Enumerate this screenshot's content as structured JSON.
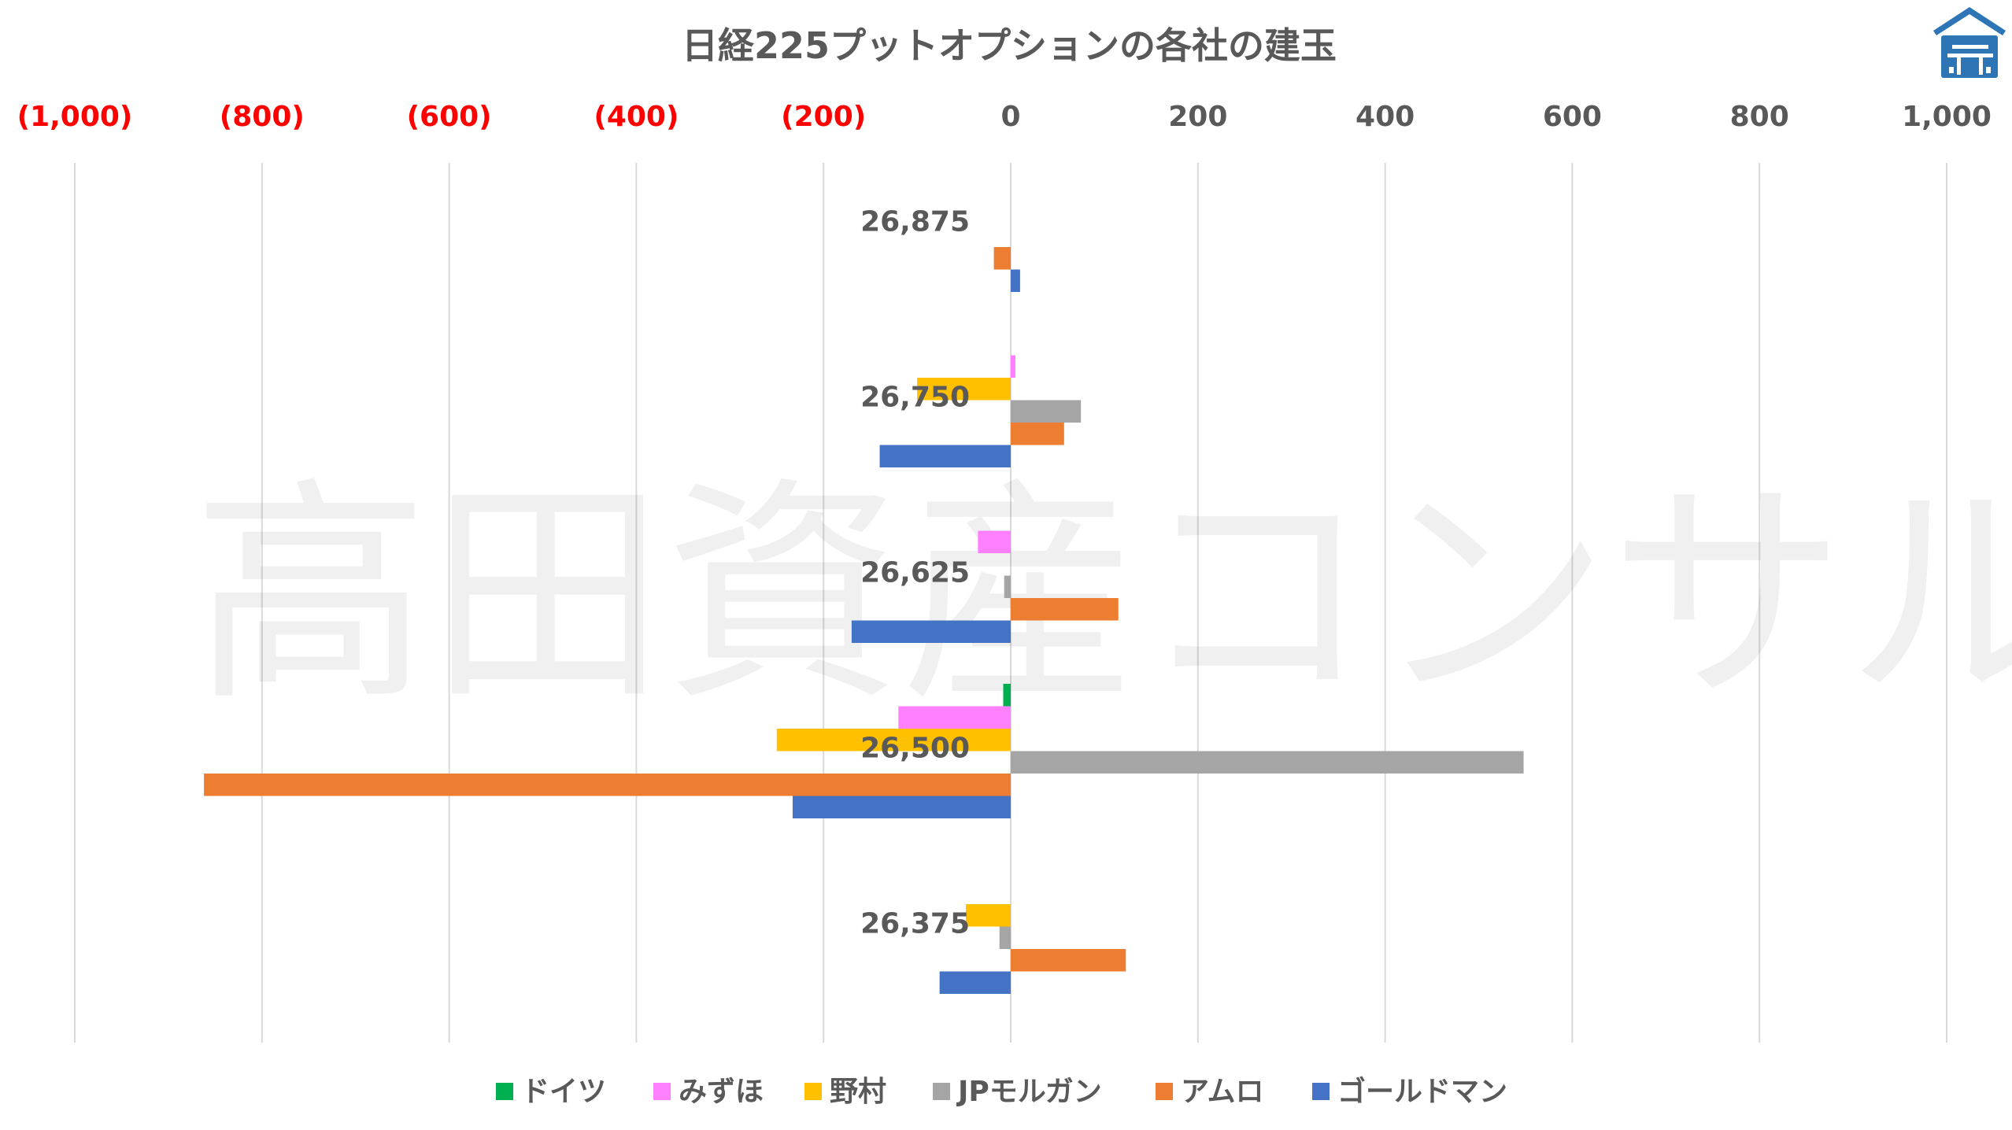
{
  "chart_data": {
    "type": "bar",
    "orientation": "horizontal",
    "title": "日経225プットオプションの各社の建玉",
    "categories": [
      "26,875",
      "26,750",
      "26,625",
      "26,500",
      "26,375"
    ],
    "series": [
      {
        "name": "ドイツ",
        "color": "#00B050",
        "values": [
          0,
          0,
          0,
          -8,
          0
        ]
      },
      {
        "name": "みずほ",
        "color": "#FF80FF",
        "values": [
          0,
          5,
          -35,
          -120,
          0
        ]
      },
      {
        "name": "野村",
        "color": "#FFC000",
        "values": [
          0,
          -100,
          0,
          -250,
          -48
        ]
      },
      {
        "name": "JPモルガン",
        "color": "#A5A5A5",
        "values": [
          0,
          75,
          -7,
          548,
          -12
        ]
      },
      {
        "name": "アムロ",
        "color": "#ED7D31",
        "values": [
          -18,
          57,
          115,
          -862,
          123
        ]
      },
      {
        "name": "ゴールドマン",
        "color": "#4472C4",
        "values": [
          10,
          -140,
          -170,
          -233,
          -76
        ]
      }
    ],
    "xlim": [
      -1000,
      1000
    ],
    "x_ticks": [
      -1000,
      -800,
      -600,
      -400,
      -200,
      0,
      200,
      400,
      600,
      800,
      1000
    ],
    "x_tick_labels": [
      "(1,000)",
      "(800)",
      "(600)",
      "(400)",
      "(200)",
      "0",
      "200",
      "400",
      "600",
      "800",
      "1,000"
    ],
    "negative_tick_color": "#FF0000",
    "positive_tick_color": "#595959",
    "gridlines": "vertical",
    "legend_position": "bottom"
  },
  "watermark": "高田資産コンサル",
  "logo": {
    "name": "house-logo",
    "color": "#2E75B6"
  }
}
